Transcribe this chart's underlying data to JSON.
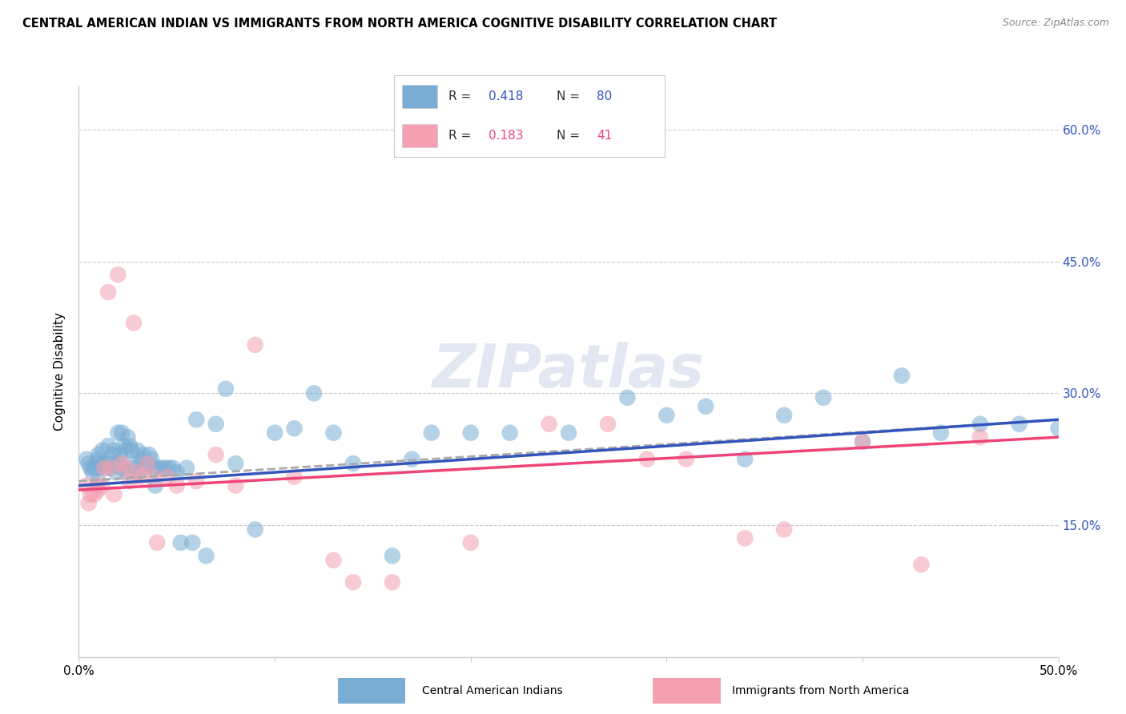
{
  "title": "CENTRAL AMERICAN INDIAN VS IMMIGRANTS FROM NORTH AMERICA COGNITIVE DISABILITY CORRELATION CHART",
  "source": "Source: ZipAtlas.com",
  "ylabel": "Cognitive Disability",
  "x_min": 0.0,
  "x_max": 0.5,
  "y_min": 0.0,
  "y_max": 0.65,
  "y_ticks": [
    0.15,
    0.3,
    0.45,
    0.6
  ],
  "y_tick_labels": [
    "15.0%",
    "30.0%",
    "45.0%",
    "60.0%"
  ],
  "x_ticks": [
    0.0,
    0.1,
    0.2,
    0.3,
    0.4,
    0.5
  ],
  "x_tick_labels": [
    "0.0%",
    "",
    "",
    "",
    "",
    "50.0%"
  ],
  "legend_label1_r": "0.418",
  "legend_label1_n": "80",
  "legend_label2_r": "0.183",
  "legend_label2_n": "41",
  "color_blue": "#7aadd4",
  "color_pink": "#f4a0b0",
  "color_trend_blue": "#3355bb",
  "color_trend_pink": "#ee4477",
  "color_trend_gray": "#aaaaaa",
  "watermark": "ZIPatlas",
  "blue_x": [
    0.004,
    0.005,
    0.006,
    0.007,
    0.008,
    0.009,
    0.01,
    0.01,
    0.01,
    0.01,
    0.012,
    0.013,
    0.014,
    0.015,
    0.015,
    0.016,
    0.017,
    0.018,
    0.019,
    0.02,
    0.02,
    0.021,
    0.022,
    0.022,
    0.023,
    0.024,
    0.025,
    0.025,
    0.026,
    0.027,
    0.028,
    0.029,
    0.03,
    0.03,
    0.032,
    0.033,
    0.034,
    0.035,
    0.036,
    0.037,
    0.038,
    0.039,
    0.04,
    0.042,
    0.044,
    0.046,
    0.048,
    0.05,
    0.052,
    0.055,
    0.058,
    0.06,
    0.065,
    0.07,
    0.075,
    0.08,
    0.09,
    0.1,
    0.11,
    0.12,
    0.13,
    0.14,
    0.16,
    0.17,
    0.18,
    0.2,
    0.22,
    0.25,
    0.28,
    0.3,
    0.32,
    0.34,
    0.36,
    0.38,
    0.4,
    0.42,
    0.44,
    0.46,
    0.48,
    0.5
  ],
  "blue_y": [
    0.225,
    0.22,
    0.215,
    0.21,
    0.215,
    0.22,
    0.225,
    0.23,
    0.215,
    0.2,
    0.235,
    0.22,
    0.215,
    0.24,
    0.22,
    0.215,
    0.23,
    0.235,
    0.21,
    0.255,
    0.22,
    0.23,
    0.255,
    0.215,
    0.24,
    0.235,
    0.25,
    0.21,
    0.24,
    0.235,
    0.22,
    0.215,
    0.235,
    0.21,
    0.225,
    0.23,
    0.215,
    0.22,
    0.23,
    0.225,
    0.215,
    0.195,
    0.215,
    0.215,
    0.215,
    0.215,
    0.215,
    0.21,
    0.13,
    0.215,
    0.13,
    0.27,
    0.115,
    0.265,
    0.305,
    0.22,
    0.145,
    0.255,
    0.26,
    0.3,
    0.255,
    0.22,
    0.115,
    0.225,
    0.255,
    0.255,
    0.255,
    0.255,
    0.295,
    0.275,
    0.285,
    0.225,
    0.275,
    0.295,
    0.245,
    0.32,
    0.255,
    0.265,
    0.265,
    0.26
  ],
  "pink_x": [
    0.004,
    0.005,
    0.006,
    0.008,
    0.009,
    0.01,
    0.012,
    0.013,
    0.015,
    0.016,
    0.018,
    0.02,
    0.022,
    0.024,
    0.026,
    0.028,
    0.03,
    0.032,
    0.035,
    0.038,
    0.04,
    0.045,
    0.05,
    0.06,
    0.07,
    0.08,
    0.09,
    0.11,
    0.13,
    0.14,
    0.16,
    0.2,
    0.24,
    0.27,
    0.29,
    0.31,
    0.34,
    0.36,
    0.4,
    0.43,
    0.46
  ],
  "pink_y": [
    0.195,
    0.175,
    0.185,
    0.185,
    0.195,
    0.19,
    0.195,
    0.215,
    0.415,
    0.215,
    0.185,
    0.435,
    0.22,
    0.215,
    0.2,
    0.38,
    0.21,
    0.205,
    0.22,
    0.205,
    0.13,
    0.205,
    0.195,
    0.2,
    0.23,
    0.195,
    0.355,
    0.205,
    0.11,
    0.085,
    0.085,
    0.13,
    0.265,
    0.265,
    0.225,
    0.225,
    0.135,
    0.145,
    0.245,
    0.105,
    0.25
  ],
  "blue_trend_x0": 0.0,
  "blue_trend_y0": 0.195,
  "blue_trend_x1": 0.5,
  "blue_trend_y1": 0.27,
  "pink_trend_x0": 0.0,
  "pink_trend_y0": 0.19,
  "pink_trend_x1": 0.5,
  "pink_trend_y1": 0.25,
  "gray_trend_x0": 0.0,
  "gray_trend_y0": 0.2,
  "gray_trend_x1": 0.5,
  "gray_trend_y1": 0.27
}
